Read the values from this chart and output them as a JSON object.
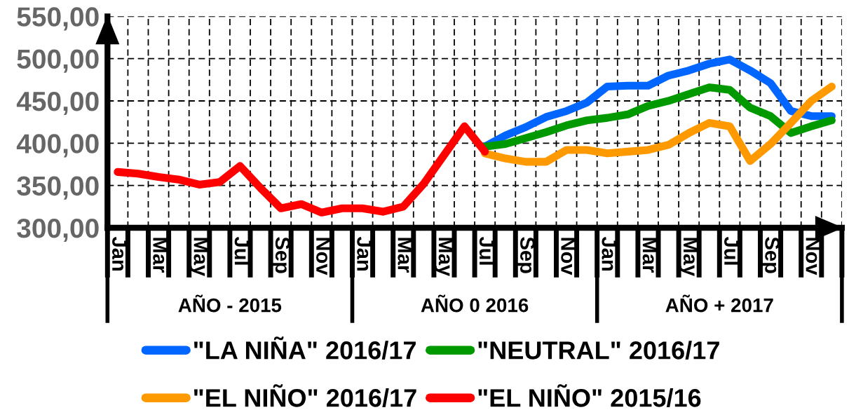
{
  "chart_data": {
    "type": "line",
    "categories": [
      "Jan",
      null,
      "Mar",
      null,
      "May",
      null,
      "Jul",
      null,
      "Sep",
      null,
      "Nov",
      null,
      "Jan",
      null,
      "Mar",
      null,
      "May",
      null,
      "Jul",
      null,
      "Sep",
      null,
      "Nov",
      null,
      "Jan",
      null,
      "Mar",
      null,
      "May",
      null,
      "Jul",
      null,
      "Sep",
      null,
      "Nov",
      null
    ],
    "series": [
      {
        "name": "\"LA NIÑA\" 2016/17",
        "color": "#0066ff",
        "values": [
          null,
          null,
          null,
          null,
          null,
          null,
          null,
          null,
          null,
          null,
          null,
          null,
          null,
          null,
          null,
          null,
          null,
          null,
          396,
          409,
          419,
          431,
          438,
          448,
          467,
          468,
          468,
          480,
          486,
          494,
          499,
          486,
          471,
          438,
          432,
          432
        ]
      },
      {
        "name": "\"NEUTRAL\" 2016/17",
        "color": "#009900",
        "values": [
          null,
          null,
          null,
          null,
          null,
          null,
          null,
          null,
          null,
          null,
          null,
          null,
          null,
          null,
          null,
          null,
          null,
          null,
          396,
          399,
          406,
          413,
          421,
          427,
          430,
          434,
          444,
          450,
          458,
          466,
          463,
          442,
          432,
          412,
          420,
          427
        ]
      },
      {
        "name": "\"EL NIÑO\" 2016/17",
        "color": "#ff9900",
        "values": [
          null,
          null,
          null,
          null,
          null,
          null,
          null,
          null,
          null,
          null,
          null,
          null,
          null,
          null,
          null,
          null,
          null,
          null,
          388,
          382,
          378,
          378,
          392,
          392,
          388,
          390,
          392,
          398,
          412,
          424,
          420,
          379,
          399,
          424,
          450,
          467
        ]
      },
      {
        "name": "\"EL NIÑO\" 2015/16",
        "color": "#ff0000",
        "values": [
          366,
          364,
          360,
          357,
          351,
          354,
          373,
          347,
          323,
          328,
          318,
          323,
          323,
          319,
          325,
          352,
          386,
          420,
          390,
          null,
          null,
          null,
          null,
          null,
          null,
          null,
          null,
          null,
          null,
          null,
          null,
          null,
          null,
          null,
          null,
          null
        ]
      }
    ],
    "ylim": [
      300,
      550
    ],
    "yticks": [
      {
        "value": 300,
        "label": "300,00"
      },
      {
        "value": 350,
        "label": "350,00"
      },
      {
        "value": 400,
        "label": "400,00"
      },
      {
        "value": 450,
        "label": "450,00"
      },
      {
        "value": 500,
        "label": "500,00"
      },
      {
        "value": 550,
        "label": "550,00"
      }
    ],
    "grid": true,
    "legend": "bottom",
    "annotations": [
      "AÑO - 2015",
      "AÑO 0 2016",
      "AÑO + 2017"
    ]
  }
}
